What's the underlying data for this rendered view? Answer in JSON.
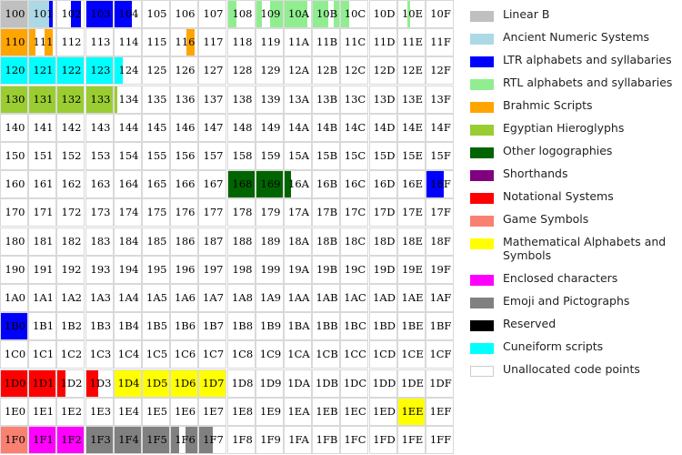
{
  "chart_data": {
    "type": "heatmap",
    "title": "",
    "rows": [
      "10",
      "11",
      "12",
      "13",
      "14",
      "15",
      "16",
      "17",
      "18",
      "19",
      "1A",
      "1B",
      "1C",
      "1D",
      "1E",
      "1F"
    ],
    "columns": [
      "0",
      "1",
      "2",
      "3",
      "4",
      "5",
      "6",
      "7",
      "8",
      "9",
      "A",
      "B",
      "C",
      "D",
      "E",
      "F"
    ],
    "default_category": "Unallocated code points",
    "categories": [
      {
        "name": "Linear B",
        "color": "#c0c0c0"
      },
      {
        "name": "Ancient Numeric Systems",
        "color": "#add8e6"
      },
      {
        "name": "LTR alphabets and syllabaries",
        "color": "#0000ff"
      },
      {
        "name": "RTL alphabets and syllabaries",
        "color": "#90ee90"
      },
      {
        "name": "Brahmic Scripts",
        "color": "#ffa500"
      },
      {
        "name": "Egyptian Hieroglyphs",
        "color": "#9acd32"
      },
      {
        "name": "Other logographies",
        "color": "#006400"
      },
      {
        "name": "Shorthands",
        "color": "#800080"
      },
      {
        "name": "Notational Systems",
        "color": "#ff0000"
      },
      {
        "name": "Game Symbols",
        "color": "#fa8072"
      },
      {
        "name": "Mathematical Alphabets and Symbols",
        "color": "#ffff00"
      },
      {
        "name": "Enclosed characters",
        "color": "#ff00ff"
      },
      {
        "name": "Emoji and Pictographs",
        "color": "#808080"
      },
      {
        "name": "Reserved",
        "color": "#000000"
      },
      {
        "name": "Cuneiform scripts",
        "color": "#00ffff"
      },
      {
        "name": "Unallocated code points",
        "color": "#ffffff"
      }
    ],
    "allocations": [
      {
        "cell": "100",
        "segments": [
          [
            0,
            1,
            "Linear B"
          ]
        ]
      },
      {
        "cell": "101",
        "segments": [
          [
            0,
            0.75,
            "Ancient Numeric Systems"
          ],
          [
            0.75,
            0.9,
            "LTR alphabets and syllabaries"
          ]
        ]
      },
      {
        "cell": "102",
        "segments": [
          [
            0.5,
            0.9,
            "LTR alphabets and syllabaries"
          ]
        ]
      },
      {
        "cell": "103",
        "segments": [
          [
            0,
            1,
            "LTR alphabets and syllabaries"
          ]
        ]
      },
      {
        "cell": "104",
        "segments": [
          [
            0,
            0.65,
            "LTR alphabets and syllabaries"
          ]
        ]
      },
      {
        "cell": "108",
        "segments": [
          [
            0,
            0.3,
            "RTL alphabets and syllabaries"
          ]
        ]
      },
      {
        "cell": "109",
        "segments": [
          [
            0,
            0.2,
            "RTL alphabets and syllabaries"
          ],
          [
            0.5,
            1,
            "RTL alphabets and syllabaries"
          ]
        ]
      },
      {
        "cell": "10A",
        "segments": [
          [
            0,
            0.85,
            "RTL alphabets and syllabaries"
          ]
        ]
      },
      {
        "cell": "10B",
        "segments": [
          [
            0,
            0.6,
            "RTL alphabets and syllabaries"
          ],
          [
            0.8,
            1,
            "RTL alphabets and syllabaries"
          ]
        ]
      },
      {
        "cell": "10C",
        "segments": [
          [
            0,
            0.3,
            "RTL alphabets and syllabaries"
          ]
        ]
      },
      {
        "cell": "10E",
        "segments": [
          [
            0.35,
            0.45,
            "RTL alphabets and syllabaries"
          ]
        ]
      },
      {
        "cell": "110",
        "segments": [
          [
            0,
            1,
            "Brahmic Scripts"
          ]
        ]
      },
      {
        "cell": "111",
        "segments": [
          [
            0,
            0.25,
            "Brahmic Scripts"
          ],
          [
            0.6,
            0.9,
            "Brahmic Scripts"
          ]
        ]
      },
      {
        "cell": "116",
        "segments": [
          [
            0.6,
            0.9,
            "Brahmic Scripts"
          ]
        ]
      },
      {
        "cell": "120",
        "segments": [
          [
            0,
            1,
            "Cuneiform scripts"
          ]
        ]
      },
      {
        "cell": "121",
        "segments": [
          [
            0,
            1,
            "Cuneiform scripts"
          ]
        ]
      },
      {
        "cell": "122",
        "segments": [
          [
            0,
            1,
            "Cuneiform scripts"
          ]
        ]
      },
      {
        "cell": "123",
        "segments": [
          [
            0,
            1,
            "Cuneiform scripts"
          ]
        ]
      },
      {
        "cell": "124",
        "segments": [
          [
            0,
            0.3,
            "Cuneiform scripts"
          ]
        ]
      },
      {
        "cell": "130",
        "segments": [
          [
            0,
            1,
            "Egyptian Hieroglyphs"
          ]
        ]
      },
      {
        "cell": "131",
        "segments": [
          [
            0,
            1,
            "Egyptian Hieroglyphs"
          ]
        ]
      },
      {
        "cell": "132",
        "segments": [
          [
            0,
            1,
            "Egyptian Hieroglyphs"
          ]
        ]
      },
      {
        "cell": "133",
        "segments": [
          [
            0,
            1,
            "Egyptian Hieroglyphs"
          ]
        ]
      },
      {
        "cell": "134",
        "segments": [
          [
            0,
            0.1,
            "Egyptian Hieroglyphs"
          ]
        ]
      },
      {
        "cell": "168",
        "segments": [
          [
            0,
            1,
            "Other logographies"
          ]
        ]
      },
      {
        "cell": "169",
        "segments": [
          [
            0,
            1,
            "Other logographies"
          ]
        ]
      },
      {
        "cell": "16A",
        "segments": [
          [
            0,
            0.25,
            "Other logographies"
          ]
        ]
      },
      {
        "cell": "16F",
        "segments": [
          [
            0,
            0.65,
            "LTR alphabets and syllabaries"
          ]
        ]
      },
      {
        "cell": "1B0",
        "segments": [
          [
            0,
            1,
            "LTR alphabets and syllabaries"
          ]
        ]
      },
      {
        "cell": "1D0",
        "segments": [
          [
            0,
            1,
            "Notational Systems"
          ]
        ]
      },
      {
        "cell": "1D1",
        "segments": [
          [
            0,
            1,
            "Notational Systems"
          ]
        ]
      },
      {
        "cell": "1D2",
        "segments": [
          [
            0,
            0.3,
            "Notational Systems"
          ]
        ]
      },
      {
        "cell": "1D3",
        "segments": [
          [
            0,
            0.45,
            "Notational Systems"
          ]
        ]
      },
      {
        "cell": "1D4",
        "segments": [
          [
            0,
            1,
            "Mathematical Alphabets and Symbols"
          ]
        ]
      },
      {
        "cell": "1D5",
        "segments": [
          [
            0,
            1,
            "Mathematical Alphabets and Symbols"
          ]
        ]
      },
      {
        "cell": "1D6",
        "segments": [
          [
            0,
            1,
            "Mathematical Alphabets and Symbols"
          ]
        ]
      },
      {
        "cell": "1D7",
        "segments": [
          [
            0,
            1,
            "Mathematical Alphabets and Symbols"
          ]
        ]
      },
      {
        "cell": "1EE",
        "segments": [
          [
            0,
            1,
            "Mathematical Alphabets and Symbols"
          ]
        ]
      },
      {
        "cell": "1F0",
        "segments": [
          [
            0,
            1,
            "Game Symbols"
          ]
        ]
      },
      {
        "cell": "1F1",
        "segments": [
          [
            0,
            1,
            "Enclosed characters"
          ]
        ]
      },
      {
        "cell": "1F2",
        "segments": [
          [
            0,
            1,
            "Enclosed characters"
          ]
        ]
      },
      {
        "cell": "1F3",
        "segments": [
          [
            0,
            1,
            "Emoji and Pictographs"
          ]
        ]
      },
      {
        "cell": "1F4",
        "segments": [
          [
            0,
            1,
            "Emoji and Pictographs"
          ]
        ]
      },
      {
        "cell": "1F5",
        "segments": [
          [
            0,
            1,
            "Emoji and Pictographs"
          ]
        ]
      },
      {
        "cell": "1F6",
        "segments": [
          [
            0,
            0.3,
            "Emoji and Pictographs"
          ],
          [
            0.55,
            1,
            "Emoji and Pictographs"
          ]
        ]
      },
      {
        "cell": "1F7",
        "segments": [
          [
            0,
            0.5,
            "Emoji and Pictographs"
          ]
        ]
      }
    ]
  }
}
